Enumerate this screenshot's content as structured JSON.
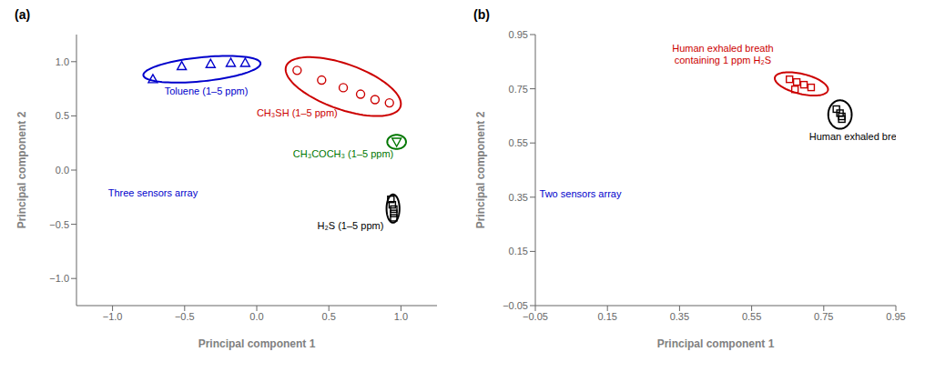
{
  "chart_data": [
    {
      "type": "scatter",
      "title": "(a)",
      "xlabel": "Principal component 1",
      "ylabel": "Principal component 2",
      "grid": false,
      "xlim": [
        -1.25,
        1.25
      ],
      "ylim": [
        -1.25,
        1.25
      ],
      "xticks": [
        {
          "value": -1.0,
          "label": "−1.0"
        },
        {
          "value": -0.5,
          "label": "−0.5"
        },
        {
          "value": 0.0,
          "label": "0.0"
        },
        0.5,
        {
          "value": 1.0,
          "label": "1.0"
        }
      ],
      "yticks": [
        {
          "value": -1.0,
          "label": "−1.0"
        },
        {
          "value": -0.5,
          "label": "−0.5"
        },
        {
          "value": 0.0,
          "label": "0.0"
        },
        0.5,
        {
          "value": 1.0,
          "label": "1.0"
        }
      ],
      "series": [
        {
          "color": "#0000cc",
          "marker": "triangle",
          "x": [
            -0.72,
            -0.52,
            -0.32,
            -0.18,
            -0.08
          ],
          "y": [
            0.84,
            0.96,
            0.98,
            0.99,
            0.99
          ],
          "ellipse": {
            "cx": -0.38,
            "cy": 0.93,
            "w": 0.82,
            "h": 0.22,
            "angle": 8
          }
        },
        {
          "color": "#cc0000",
          "marker": "circle",
          "x": [
            0.28,
            0.45,
            0.6,
            0.72,
            0.82,
            0.92
          ],
          "y": [
            0.92,
            0.83,
            0.76,
            0.7,
            0.65,
            0.62
          ],
          "ellipse": {
            "cx": 0.6,
            "cy": 0.77,
            "w": 0.88,
            "h": 0.4,
            "angle": -28
          }
        },
        {
          "color": "#007700",
          "marker": "triangle_down",
          "x": [
            0.97
          ],
          "y": [
            0.26
          ],
          "ellipse": {
            "cx": 0.97,
            "cy": 0.26,
            "w": 0.13,
            "h": 0.13,
            "angle": 0
          }
        },
        {
          "color": "#000000",
          "marker": "square",
          "x": [
            0.93,
            0.94,
            0.95,
            0.95,
            0.95
          ],
          "y": [
            -0.27,
            -0.32,
            -0.36,
            -0.4,
            -0.44
          ],
          "ellipse": {
            "cx": 0.945,
            "cy": -0.355,
            "w": 0.09,
            "h": 0.26,
            "angle": 0
          }
        }
      ],
      "annotations": [
        {
          "text": "Toluene (1–5 ppm)",
          "x": -0.35,
          "y": 0.72,
          "color": "#0000cc"
        },
        {
          "text": "CH₃SH (1–5 ppm)",
          "x": 0.28,
          "y": 0.52,
          "color": "#cc0000"
        },
        {
          "text": "CH₃COCH₃ (1–5 ppm)",
          "x": 0.6,
          "y": 0.14,
          "color": "#007700"
        },
        {
          "text": "H₂S (1–5 ppm)",
          "x": 0.65,
          "y": -0.52,
          "color": "#000000"
        },
        {
          "text": "Three sensors array",
          "x": -0.72,
          "y": -0.22,
          "color": "#0000cc"
        }
      ]
    },
    {
      "type": "scatter",
      "title": "(b)",
      "xlabel": "Principal component 1",
      "ylabel": "Principal component 2",
      "grid": false,
      "xlim": [
        -0.05,
        0.95
      ],
      "ylim": [
        -0.05,
        0.95
      ],
      "xticks": [
        {
          "value": -0.05,
          "label": "−0.05"
        },
        0.15,
        0.35,
        0.55,
        0.75,
        0.95
      ],
      "yticks": [
        {
          "value": -0.05,
          "label": "−0.05"
        },
        0.15,
        0.35,
        0.55,
        0.75,
        0.95
      ],
      "series": [
        {
          "color": "#cc0000",
          "marker": "square",
          "x": [
            0.655,
            0.675,
            0.695,
            0.715,
            0.67
          ],
          "y": [
            0.785,
            0.775,
            0.765,
            0.755,
            0.748
          ],
          "ellipse": {
            "cx": 0.688,
            "cy": 0.768,
            "w": 0.155,
            "h": 0.072,
            "angle": -20
          }
        },
        {
          "color": "#000000",
          "marker": "square",
          "x": [
            0.785,
            0.795,
            0.8,
            0.8
          ],
          "y": [
            0.675,
            0.66,
            0.648,
            0.638
          ],
          "ellipse": {
            "cx": 0.795,
            "cy": 0.655,
            "w": 0.065,
            "h": 0.105,
            "angle": 0
          }
        }
      ],
      "annotations": [
        {
          "text": "Human exhaled breath\ncontaining 1 ppm H₂S",
          "x": 0.47,
          "y": 0.875,
          "color": "#cc0000"
        },
        {
          "text": "Human exhaled breath",
          "x": 0.85,
          "y": 0.57,
          "color": "#000000"
        },
        {
          "text": "Two sensors array",
          "x": 0.075,
          "y": 0.36,
          "color": "#0000cc"
        }
      ]
    }
  ]
}
